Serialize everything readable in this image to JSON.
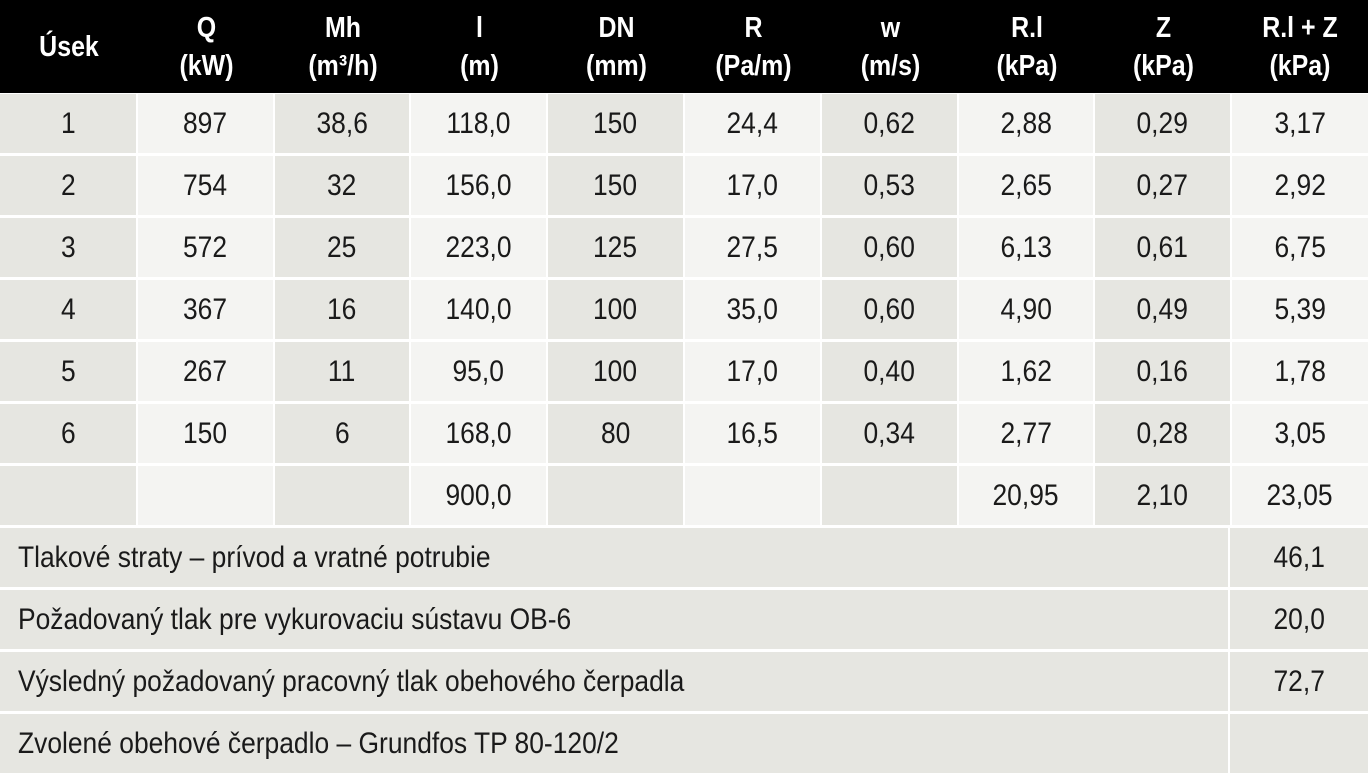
{
  "headers": [
    {
      "line1": "Úsek",
      "line2": ""
    },
    {
      "line1": "Q",
      "line2": "(kW)"
    },
    {
      "line1": "Mh",
      "line2": "(m³/h)"
    },
    {
      "line1": "l",
      "line2": "(m)"
    },
    {
      "line1": "DN",
      "line2": "(mm)"
    },
    {
      "line1": "R",
      "line2": "(Pa/m)"
    },
    {
      "line1": "w",
      "line2": "(m/s)"
    },
    {
      "line1": "R.l",
      "line2": "(kPa)"
    },
    {
      "line1": "Z",
      "line2": "(kPa)"
    },
    {
      "line1": "R.l + Z",
      "line2": "(kPa)"
    }
  ],
  "rows": [
    [
      "1",
      "897",
      "38,6",
      "118,0",
      "150",
      "24,4",
      "0,62",
      "2,88",
      "0,29",
      "3,17"
    ],
    [
      "2",
      "754",
      "32",
      "156,0",
      "150",
      "17,0",
      "0,53",
      "2,65",
      "0,27",
      "2,92"
    ],
    [
      "3",
      "572",
      "25",
      "223,0",
      "125",
      "27,5",
      "0,60",
      "6,13",
      "0,61",
      "6,75"
    ],
    [
      "4",
      "367",
      "16",
      "140,0",
      "100",
      "35,0",
      "0,60",
      "4,90",
      "0,49",
      "5,39"
    ],
    [
      "5",
      "267",
      "11",
      "95,0",
      "100",
      "17,0",
      "0,40",
      "1,62",
      "0,16",
      "1,78"
    ],
    [
      "6",
      "150",
      "6",
      "168,0",
      "80",
      "16,5",
      "0,34",
      "2,77",
      "0,28",
      "3,05"
    ],
    [
      "",
      "",
      "",
      "900,0",
      "",
      "",
      "",
      "20,95",
      "2,10",
      "23,05"
    ]
  ],
  "summary": [
    {
      "label": "Tlakové straty – prívod a vratné potrubie",
      "value": "46,1"
    },
    {
      "label": "Požadovaný tlak pre vykurovaciu sústavu OB-6",
      "value": "20,0"
    },
    {
      "label": "Výsledný požadovaný pracovný tlak obehového čerpadla",
      "value": "72,7"
    },
    {
      "label": "Zvolené obehové čerpadlo – Grundfos TP 80-120/2",
      "value": ""
    }
  ],
  "colors": {
    "header_bg": "#000000",
    "header_text": "#ffffff",
    "cell_dark": "#e6e6e1",
    "cell_light": "#f4f4f2"
  }
}
